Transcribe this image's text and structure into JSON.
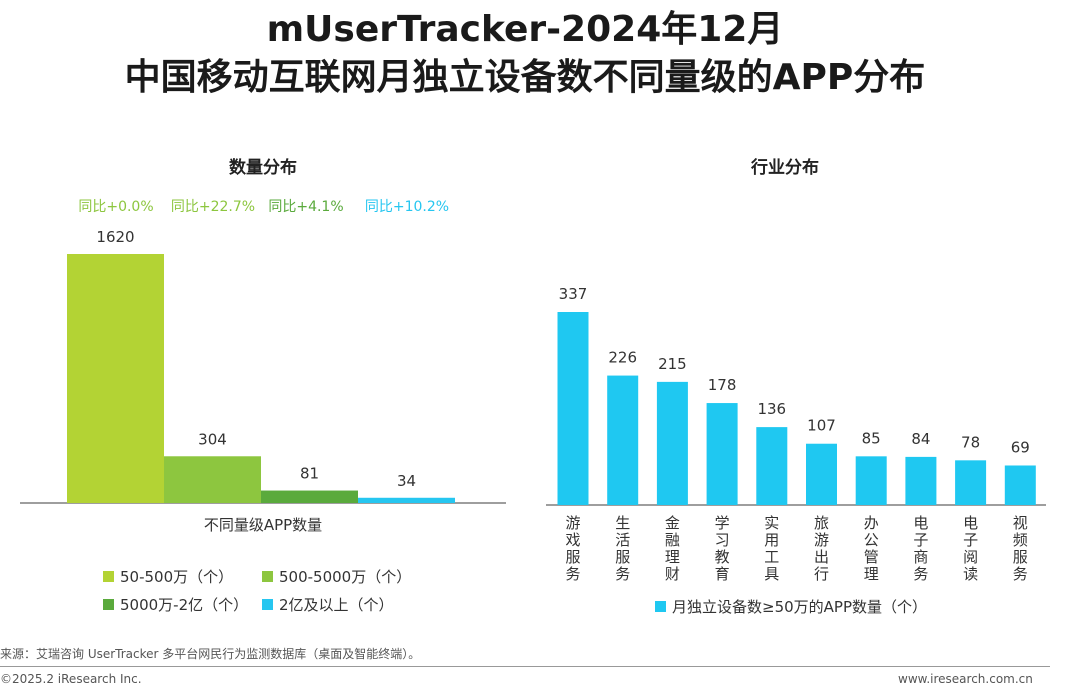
{
  "title_line1": "mUserTracker-2024年12月",
  "title_line2": "中国移动互联网月独立设备数不同量级的APP分布",
  "chart_data": [
    {
      "type": "bar",
      "title": "数量分布",
      "xlabel": "不同量级APP数量",
      "categories": [
        "50-500万（个）",
        "500-5000万（个）",
        "5000万-2亿（个）",
        "2亿及以上（个）"
      ],
      "values": [
        1620,
        304,
        81,
        34
      ],
      "yoy": [
        "同比+0.0%",
        "同比+22.7%",
        "同比+4.1%",
        "同比+10.2%"
      ],
      "colors": [
        "#b3d334",
        "#8dc63f",
        "#5aaa3c",
        "#26c6f0"
      ],
      "ylim": [
        0,
        1620
      ],
      "grid": false,
      "legend_position": "bottom"
    },
    {
      "type": "bar",
      "title": "行业分布",
      "categories": [
        "游戏服务",
        "生活服务",
        "金融理财",
        "学习教育",
        "实用工具",
        "旅游出行",
        "办公管理",
        "电子商务",
        "电子阅读",
        "视频服务"
      ],
      "values": [
        337,
        226,
        215,
        178,
        136,
        107,
        85,
        84,
        78,
        69
      ],
      "series_name": "月独立设备数≥50万的APP数量（个）",
      "color": "#1fc8f1",
      "ylim": [
        0,
        337
      ],
      "grid": false,
      "legend_position": "bottom"
    }
  ],
  "yoy_colors": [
    "#8dc63f",
    "#8dc63f",
    "#5aaa3c",
    "#26c6f0"
  ],
  "footer": {
    "source": "来源：艾瑞咨询 UserTracker 多平台网民行为监测数据库（桌面及智能终端）。",
    "copyright": "©2025.2 iResearch Inc.",
    "website": "www.iresearch.com.cn"
  }
}
